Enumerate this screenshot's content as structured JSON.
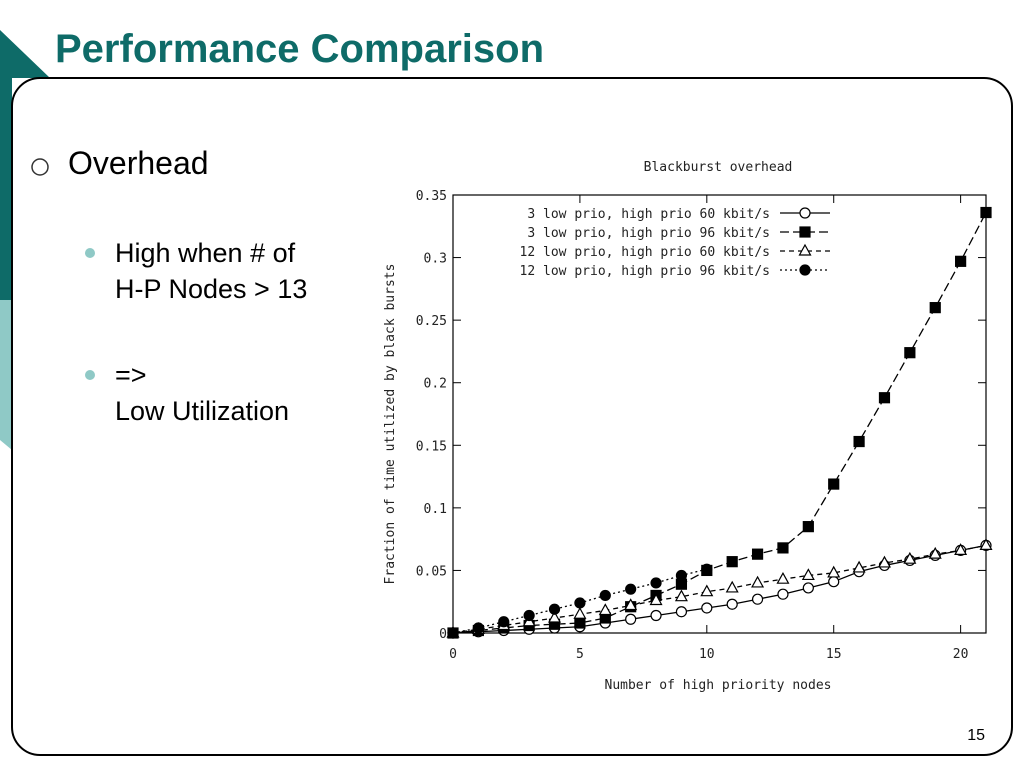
{
  "slide": {
    "title": "Performance Comparison",
    "bullets": [
      {
        "text": "Overhead",
        "sub": [
          {
            "lines": [
              "High when # of",
              "H-P Nodes > 13"
            ]
          },
          {
            "lines": [
              "=>",
              "Low Utilization"
            ]
          }
        ]
      }
    ],
    "page_number": "15"
  },
  "chart_data": {
    "type": "line",
    "title": "Blackburst overhead",
    "x_label": "Number of high priority nodes",
    "y_label": "Fraction of time utilized by black bursts",
    "x": [
      0,
      1,
      2,
      3,
      4,
      5,
      6,
      7,
      8,
      9,
      10,
      11,
      12,
      13,
      14,
      15,
      16,
      17,
      18,
      19,
      20,
      21
    ],
    "series": [
      {
        "name": "3 low prio, high prio 60 kbit/s",
        "color": "#000000",
        "marker": "circle-open",
        "dash": "solid",
        "values": [
          0,
          0.001,
          0.002,
          0.003,
          0.004,
          0.005,
          0.008,
          0.011,
          0.014,
          0.017,
          0.02,
          0.023,
          0.027,
          0.031,
          0.036,
          0.041,
          0.049,
          0.054,
          0.058,
          0.062,
          0.066,
          0.07
        ]
      },
      {
        "name": "3 low prio, high prio 96 kbit/s",
        "color": "#000000",
        "marker": "square-filled",
        "dash": "dashed",
        "values": [
          0,
          0.002,
          0.004,
          0.006,
          0.007,
          0.008,
          0.012,
          0.021,
          0.03,
          0.039,
          0.05,
          0.057,
          0.063,
          0.068,
          0.085,
          0.119,
          0.153,
          0.188,
          0.224,
          0.26,
          0.297,
          0.336
        ]
      },
      {
        "name": "12 low prio, high prio 60 kbit/s",
        "color": "#000000",
        "marker": "triangle-open",
        "dash": "short-dashed",
        "values": [
          0,
          0.003,
          0.006,
          0.009,
          0.012,
          0.015,
          0.018,
          0.022,
          0.026,
          0.029,
          0.033,
          0.036,
          0.04,
          0.043,
          0.046,
          0.048,
          0.052,
          0.056,
          0.059,
          0.063,
          0.066,
          0.07
        ]
      },
      {
        "name": "12 low prio, high prio 96 kbit/s",
        "color": "#000000",
        "marker": "circle-filled",
        "dash": "dotted",
        "values": [
          0,
          0.004,
          0.009,
          0.014,
          0.019,
          0.024,
          0.03,
          0.035,
          0.04,
          0.046,
          0.051,
          null,
          null,
          null,
          null,
          null,
          null,
          null,
          null,
          null,
          null,
          null
        ]
      }
    ],
    "xlim": [
      0,
      21
    ],
    "xticks": [
      0,
      5,
      10,
      15,
      20
    ],
    "ylim": [
      0,
      0.35
    ],
    "yticks": [
      0,
      0.05,
      0.1,
      0.15,
      0.2,
      0.25,
      0.3,
      0.35
    ],
    "grid": false,
    "legend": "top-left"
  }
}
